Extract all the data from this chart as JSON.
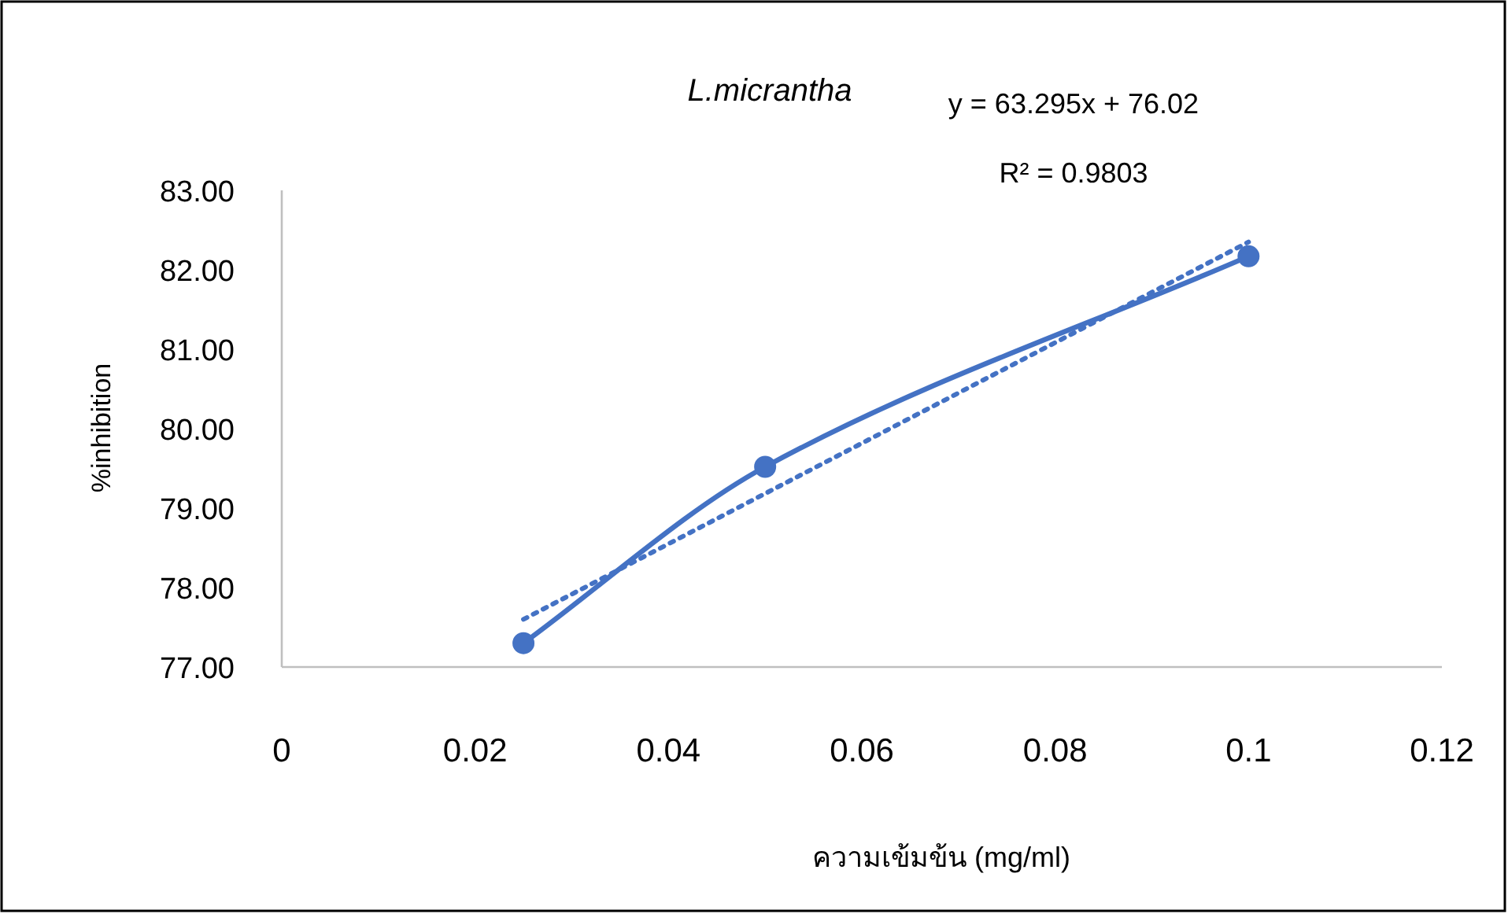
{
  "chart_data": {
    "type": "line",
    "title": "L.micrantha",
    "xlabel": "ความเข้มข้น (mg/ml)",
    "ylabel": "%inhibition",
    "annotations": [
      "y = 63.295x + 76.02",
      "R² = 0.9803"
    ],
    "x": [
      0.025,
      0.05,
      0.1
    ],
    "series": [
      {
        "color": "#4472c4",
        "values": [
          77.3,
          79.52,
          82.17
        ],
        "marker": "circle",
        "line_style": "solid"
      },
      {
        "type": "line",
        "x": [
          0.025,
          0.1
        ],
        "color": "#4472c4",
        "values": [
          77.6,
          82.35
        ],
        "marker": "none",
        "line_style": "dotted"
      }
    ],
    "xlim": [
      0,
      0.12
    ],
    "xticks": [
      0,
      0.02,
      0.04,
      0.06,
      0.08,
      0.1,
      0.12
    ],
    "ylim": [
      77,
      83
    ],
    "yticks": [
      {
        "value": 77,
        "label": "77.00"
      },
      {
        "value": 78,
        "label": "78.00"
      },
      {
        "value": 79,
        "label": "79.00"
      },
      {
        "value": 80,
        "label": "80.00"
      },
      {
        "value": 81,
        "label": "81.00"
      },
      {
        "value": 82,
        "label": "82.00"
      },
      {
        "value": 83,
        "label": "83.00"
      }
    ]
  }
}
